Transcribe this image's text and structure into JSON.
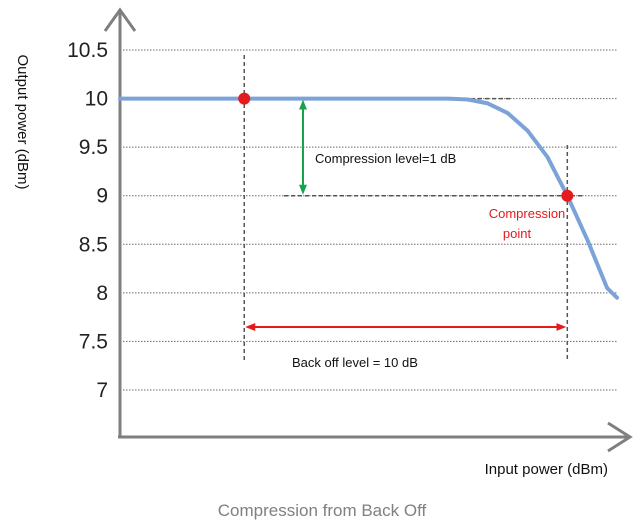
{
  "chart_data": {
    "type": "line",
    "title": "",
    "caption": "Compression from Back Off",
    "xlabel": "Input power (dBm)",
    "ylabel": "Output power (dBm)",
    "ylim": [
      6.5,
      11
    ],
    "xlim": [
      0,
      100
    ],
    "grid": true,
    "y_ticks": [
      "10.5",
      "10",
      "9.5",
      "9",
      "8.5",
      "8",
      "7.5",
      "7"
    ],
    "y_tick_values": [
      10.5,
      10,
      9.5,
      9,
      8.5,
      8,
      7.5,
      7
    ],
    "series": [
      {
        "color": "#7ba3d8",
        "x": [
          0,
          20,
          40,
          60,
          66,
          70,
          74,
          78,
          82,
          86,
          90,
          94,
          98,
          100
        ],
        "y": [
          10.0,
          10.0,
          10.0,
          10.0,
          10.0,
          9.99,
          9.95,
          9.85,
          9.67,
          9.4,
          9.0,
          8.55,
          8.05,
          7.95
        ]
      }
    ],
    "points": [
      {
        "label": "",
        "x": 25,
        "y": 10.0,
        "color": "#e41a1c"
      },
      {
        "label": "Compression point",
        "x": 90,
        "y": 9.0,
        "color": "#e41a1c"
      }
    ],
    "annotations": {
      "compression_level": "Compression level=1 dB",
      "backoff_level": "Back off level = 10 dB",
      "compression_point_line1": "Compression",
      "compression_point_line2": "point"
    },
    "colors": {
      "curve": "#7ba3d8",
      "marker": "#e41a1c",
      "compression_arrow": "#16a34a",
      "backoff_arrow": "#e41a1c",
      "axis": "#7f7f7f",
      "caption": "#808080"
    }
  }
}
